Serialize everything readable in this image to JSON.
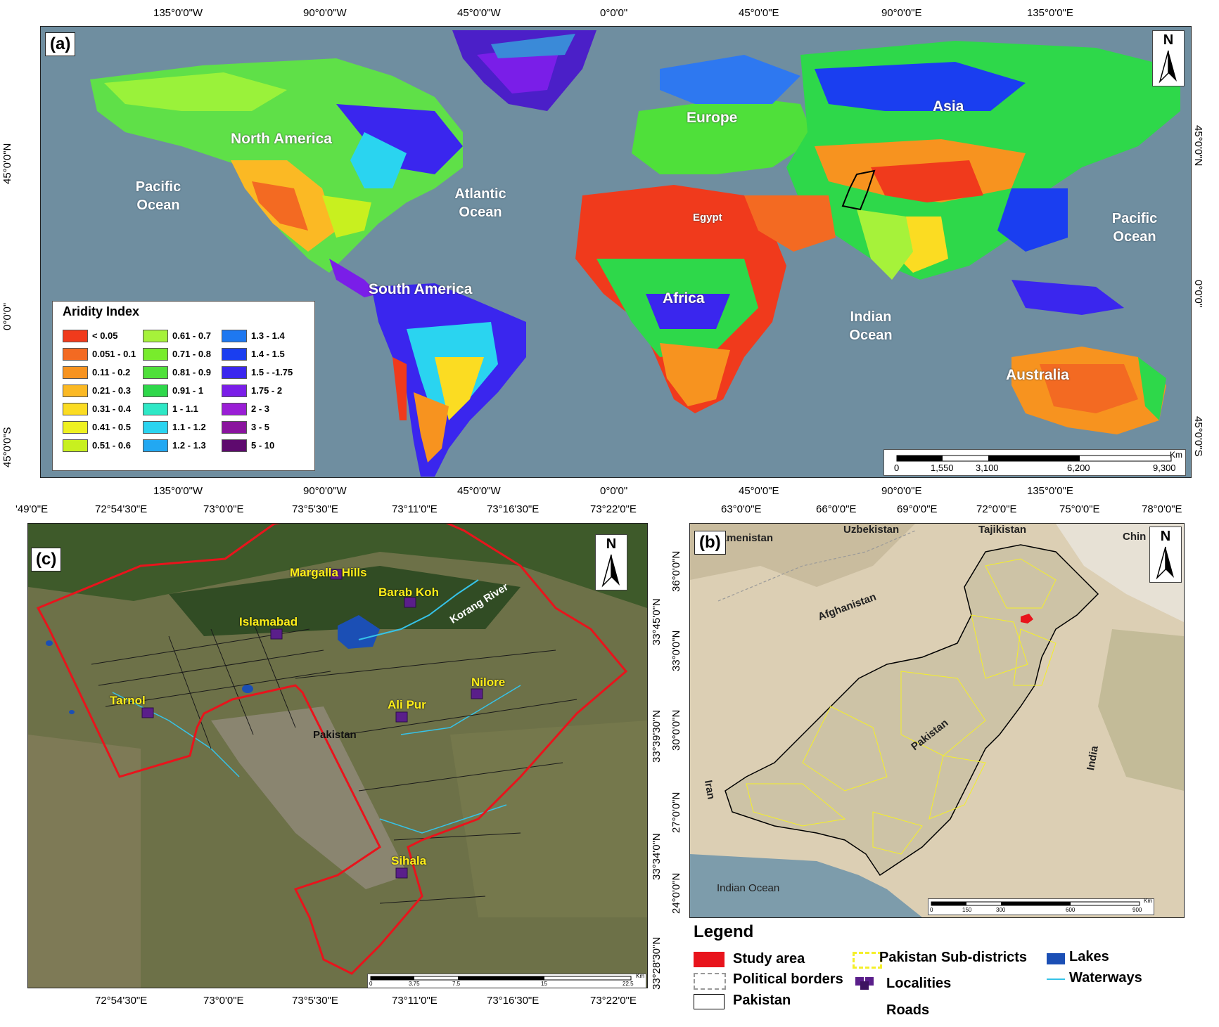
{
  "panel_a": {
    "label": "(a)",
    "north": "N",
    "top_ticks": [
      "135°0'0\"W",
      "90°0'0\"W",
      "45°0'0\"W",
      "0°0'0\"",
      "45°0'0\"E",
      "90°0'0\"E",
      "135°0'0\"E"
    ],
    "bottom_ticks": [
      "135°0'0\"W",
      "90°0'0\"W",
      "45°0'0\"W",
      "0°0'0\"",
      "45°0'0\"E",
      "90°0'0\"E",
      "135°0'0\"E"
    ],
    "left_ticks": [
      "45°0'0\"N",
      "0°0'0\"",
      "45°0'0\"S"
    ],
    "right_ticks": [
      "45°0'0\"N",
      "0°0'0\"",
      "45°0'0\"S"
    ],
    "continents": {
      "north_america": "North America",
      "south_america": "South America",
      "europe": "Europe",
      "asia": "Asia",
      "africa": "Africa",
      "australia": "Australia",
      "egypt": "Egypt"
    },
    "oceans": {
      "pacific_left": "Pacific Ocean",
      "atlantic": "Atlantic Ocean",
      "indian": "Indian Ocean",
      "pacific_right": "Pacific Ocean"
    },
    "legend": {
      "title": "Aridity Index",
      "items": [
        {
          "label": "< 0.05",
          "color": "#f03a1c"
        },
        {
          "label": "0.051 - 0.1",
          "color": "#f36a22"
        },
        {
          "label": "0.11 - 0.2",
          "color": "#f7931f"
        },
        {
          "label": "0.21 - 0.3",
          "color": "#fbb924"
        },
        {
          "label": "0.31 - 0.4",
          "color": "#fbdc22"
        },
        {
          "label": "0.41 - 0.5",
          "color": "#eef121"
        },
        {
          "label": "0.51 - 0.6",
          "color": "#c8f01f"
        },
        {
          "label": "0.61 - 0.7",
          "color": "#a6f23a"
        },
        {
          "label": "0.71 - 0.8",
          "color": "#78ec2c"
        },
        {
          "label": "0.81 - 0.9",
          "color": "#4fe03a"
        },
        {
          "label": "0.91 - 1",
          "color": "#2ed84a"
        },
        {
          "label": "1 - 1.1",
          "color": "#2ee8c6"
        },
        {
          "label": "1.1 - 1.2",
          "color": "#2ad4f0"
        },
        {
          "label": "1.2 - 1.3",
          "color": "#22a8f2"
        },
        {
          "label": "1.3 - 1.4",
          "color": "#1e78f0"
        },
        {
          "label": "1.4 - 1.5",
          "color": "#1a3ef0"
        },
        {
          "label": "1.5 - -1.75",
          "color": "#3a26ee"
        },
        {
          "label": "1.75 - 2",
          "color": "#7a1ee8"
        },
        {
          "label": "2 - 3",
          "color": "#9a1ed6"
        },
        {
          "label": "3 - 5",
          "color": "#8a149e"
        },
        {
          "label": "5  - 10",
          "color": "#5e0a6e"
        }
      ]
    },
    "scalebar": {
      "unit": "Km",
      "labels": [
        "0",
        "1,550",
        "3,100",
        "6,200",
        "9,300"
      ]
    }
  },
  "panel_b": {
    "label": "(b)",
    "north": "N",
    "top_ticks": [
      "63°0'0\"E",
      "66°0'0\"E",
      "69°0'0\"E",
      "72°0'0\"E",
      "75°0'0\"E",
      "78°0'0\"E"
    ],
    "left_ticks": [
      "36°0'0\"N",
      "33°0'0\"N",
      "30°0'0\"N",
      "27°0'0\"N",
      "24°0'0\"N"
    ],
    "countries": {
      "turkmenistan": "rkmenistan",
      "uzbekistan": "Uzbekistan",
      "tajikistan": "Tajikistan",
      "china": "Chin",
      "afghanistan": "Afghanistan",
      "pakistan": "Pakistan",
      "iran": "Iran",
      "india": "India",
      "indian_ocean": "Indian Ocean"
    },
    "scalebar": {
      "unit": "Km",
      "labels": [
        "0",
        "150",
        "300",
        "600",
        "900"
      ]
    }
  },
  "panel_c": {
    "label": "(c)",
    "north": "N",
    "top_ticks": [
      "'49'0\"E",
      "72°54'30\"E",
      "73°0'0\"E",
      "73°5'30\"E",
      "73°11'0\"E",
      "73°16'30\"E",
      "73°22'0\"E"
    ],
    "bottom_ticks": [
      "72°54'30\"E",
      "73°0'0\"E",
      "73°5'30\"E",
      "73°11'0\"E",
      "73°16'30\"E",
      "73°22'0\"E"
    ],
    "right_ticks": [
      "33°45'0\"N",
      "33°39'30\"N",
      "33°34'0\"N",
      "33°28'30\"N"
    ],
    "localities": {
      "margalla": "Margalla Hills",
      "barab_koh": "Barab Koh",
      "islamabad": "Islamabad",
      "tarnol": "Tarnol",
      "ali_pur": "Ali Pur",
      "nilore": "Nilore",
      "sihala": "Sihala"
    },
    "korang": "Korang River",
    "pakistan": "Pakistan",
    "scalebar": {
      "unit": "Km",
      "labels": [
        "0",
        "3.75",
        "7.5",
        "15",
        "22.5"
      ]
    }
  },
  "bottom_legend": {
    "title": "Legend",
    "study_area": "Study area",
    "political_borders": "Political borders",
    "pakistan": "Pakistan",
    "sub_districts": "Pakistan Sub-districts",
    "localities": "Localities",
    "roads": "Roads",
    "lakes": "Lakes",
    "waterways": "Waterways"
  },
  "colors": {
    "study_area": "#e8141c",
    "lakes": "#1b4fb5",
    "waterways": "#36c3e8",
    "subdistricts": "#f4ef2a",
    "ocean": "#6e8fa0"
  }
}
